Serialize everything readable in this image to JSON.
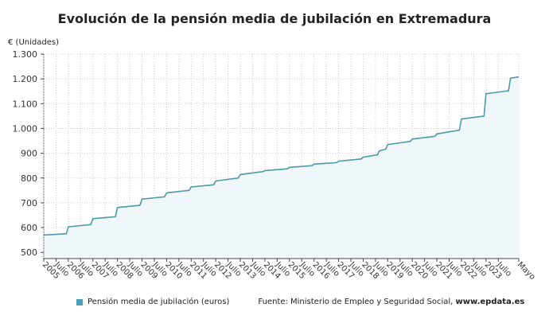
{
  "chart_data": {
    "type": "area",
    "title": "Evolución de la pensión media de jubilación en Extremadura",
    "ylabel": "€ (Unidades)",
    "ylim": [
      475,
      1300
    ],
    "yticks": [
      500,
      600,
      700,
      800,
      900,
      1000,
      1100,
      1200,
      1300
    ],
    "ytick_labels": [
      "500",
      "600",
      "700",
      "800",
      "900",
      "1.000",
      "1.100",
      "1.200",
      "1.300"
    ],
    "xlim": [
      "2005-01",
      "2024-05"
    ],
    "xtick_labels": [
      "2005",
      "Julio",
      "2006",
      "Julio",
      "2007",
      "Julio",
      "2008",
      "Julio",
      "2009",
      "Julio",
      "2010",
      "Julio",
      "2011",
      "Julio",
      "2012",
      "Julio",
      "2013",
      "Julio",
      "2014",
      "Julio",
      "2015",
      "Julio",
      "2016",
      "Julio",
      "2017",
      "Julio",
      "2018",
      "Julio",
      "2019",
      "Julio",
      "2020",
      "Julio",
      "2021",
      "Julio",
      "2022",
      "Julio",
      "2023",
      "Julio",
      "Mayo"
    ],
    "grid": true,
    "legend_position": "bottom",
    "color": "#4a9aa8",
    "series": [
      {
        "name": "Pensión media de jubilación (euros)",
        "points": [
          [
            "2005-01",
            570
          ],
          [
            "2005-12",
            575
          ],
          [
            "2006-01",
            603
          ],
          [
            "2006-12",
            612
          ],
          [
            "2007-01",
            636
          ],
          [
            "2007-12",
            644
          ],
          [
            "2008-01",
            681
          ],
          [
            "2008-12",
            690
          ],
          [
            "2009-01",
            715
          ],
          [
            "2009-12",
            724
          ],
          [
            "2010-01",
            740
          ],
          [
            "2010-12",
            750
          ],
          [
            "2011-01",
            764
          ],
          [
            "2011-12",
            773
          ],
          [
            "2012-01",
            788
          ],
          [
            "2012-12",
            800
          ],
          [
            "2013-01",
            814
          ],
          [
            "2013-12",
            826
          ],
          [
            "2014-01",
            830
          ],
          [
            "2014-12",
            837
          ],
          [
            "2015-01",
            843
          ],
          [
            "2015-12",
            850
          ],
          [
            "2016-01",
            856
          ],
          [
            "2016-12",
            862
          ],
          [
            "2017-01",
            868
          ],
          [
            "2017-12",
            877
          ],
          [
            "2018-01",
            884
          ],
          [
            "2018-08",
            894
          ],
          [
            "2018-09",
            910
          ],
          [
            "2018-12",
            916
          ],
          [
            "2019-01",
            935
          ],
          [
            "2019-12",
            948
          ],
          [
            "2020-01",
            957
          ],
          [
            "2020-12",
            968
          ],
          [
            "2021-01",
            978
          ],
          [
            "2021-12",
            993
          ],
          [
            "2022-01",
            1038
          ],
          [
            "2022-12",
            1050
          ],
          [
            "2023-01",
            1140
          ],
          [
            "2023-12",
            1152
          ],
          [
            "2024-01",
            1203
          ],
          [
            "2024-05",
            1208
          ]
        ]
      }
    ]
  },
  "legend": {
    "label": "Pensión media de jubilación (euros)"
  },
  "source": {
    "prefix": "Fuente: Ministerio de Empleo y Seguridad Social, ",
    "site": "www.epdata.es"
  }
}
